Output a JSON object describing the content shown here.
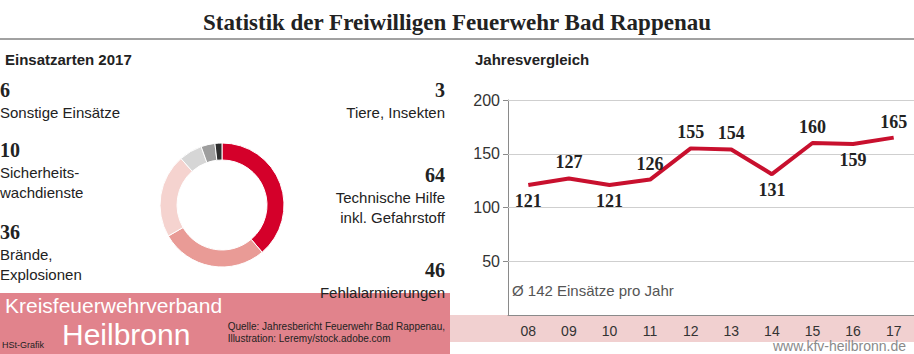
{
  "title": "Statistik der Freiwilligen Feuerwehr Bad Rappenau",
  "chart_data": [
    {
      "type": "pie",
      "title": "Einsatzarten 2017",
      "categories": [
        "Technische Hilfe\ninkl. Gefahrstoff",
        "Fehlalarmierungen",
        "Brände,\nExplosionen",
        "Sicherheits-\nwachdienste",
        "Sonstige Einsätze",
        "Tiere, Insekten"
      ],
      "values": [
        64,
        46,
        36,
        10,
        6,
        3
      ],
      "colors": [
        "#d4002a",
        "#e99b96",
        "#f5d3cf",
        "#d6d6d6",
        "#9e9e9e",
        "#2e2e2e"
      ],
      "data_labels": true
    },
    {
      "type": "line",
      "title": "Jahresvergleich",
      "categories": [
        "08",
        "09",
        "10",
        "11",
        "12",
        "13",
        "14",
        "15",
        "16",
        "17"
      ],
      "values": [
        121,
        127,
        121,
        126,
        155,
        154,
        131,
        160,
        159,
        165
      ],
      "color": "#c8102e",
      "ylim": [
        0,
        200
      ],
      "yticks": [
        50,
        100,
        150,
        200
      ],
      "grid": true,
      "data_labels": true,
      "annotations": [
        "Ø 142 Einsätze pro Jahr"
      ]
    }
  ],
  "source": [
    "Quelle: Jahresbericht Feuerwehr Bad Rappenau,",
    "Illustration: Leremy/stock.adobe.com"
  ],
  "credit": "HSt-Grafik",
  "watermark": {
    "organisation": "Kreisfeuerwehrverband",
    "region": "Heilbronn",
    "url": "www.kfv-heilbronn.de"
  }
}
